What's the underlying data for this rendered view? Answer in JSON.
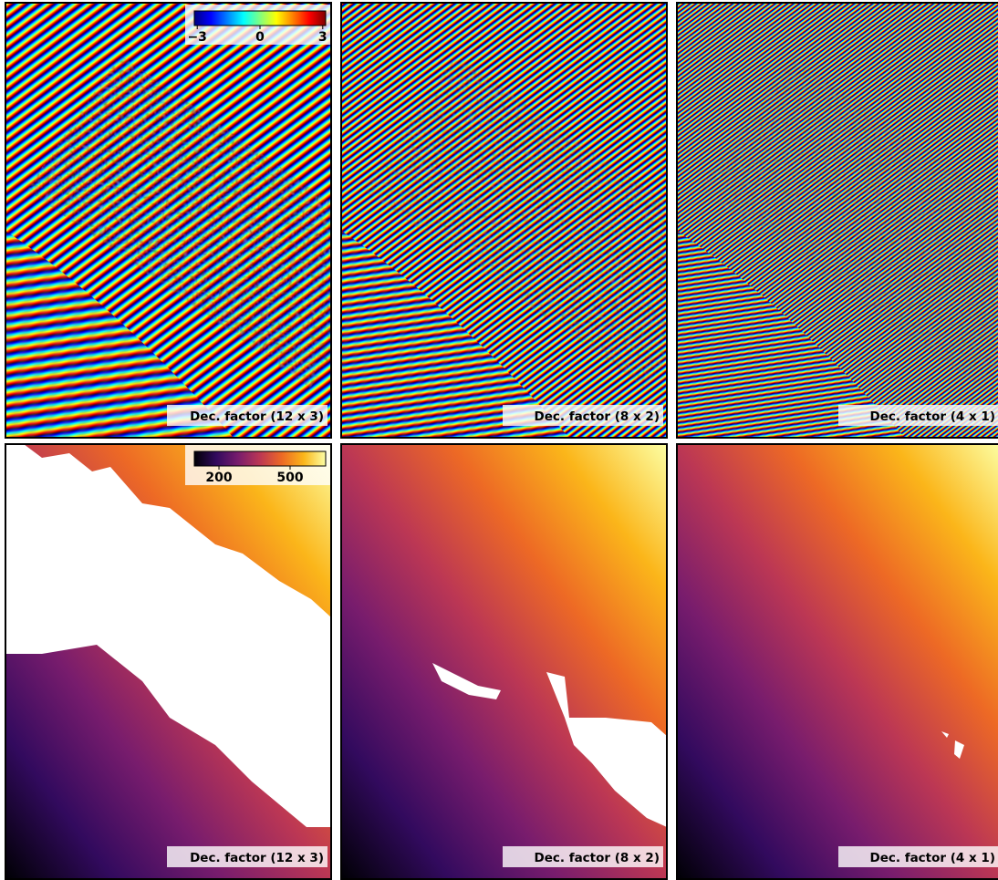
{
  "colorbars": [
    {
      "colors": [
        "#00007f",
        "#0000ff",
        "#0080ff",
        "#00ffff",
        "#80ff80",
        "#ffff00",
        "#ff8000",
        "#ff0000",
        "#7f0000"
      ],
      "lim": [
        -3.14,
        3.14
      ],
      "ticks": [
        {
          "value": -3,
          "label": "−3"
        },
        0,
        3
      ]
    },
    {
      "colors": [
        "#000004",
        "#320a5e",
        "#781c6d",
        "#bc3754",
        "#ed6925",
        "#fbb61a",
        "#fcffa4"
      ],
      "lim": [
        96,
        650
      ],
      "ticks": [
        200,
        500
      ]
    }
  ],
  "panels": [
    [
      {
        "label": "Dec. factor (12 x 3)"
      },
      {
        "label": "Dec. factor (8 x 2)"
      },
      {
        "label": "Dec. factor (4 x 1)"
      }
    ],
    [
      {
        "label": "Dec. factor (12 x 3)"
      },
      {
        "label": "Dec. factor (8 x 2)"
      },
      {
        "label": "Dec. factor (4 x 1)"
      }
    ]
  ]
}
